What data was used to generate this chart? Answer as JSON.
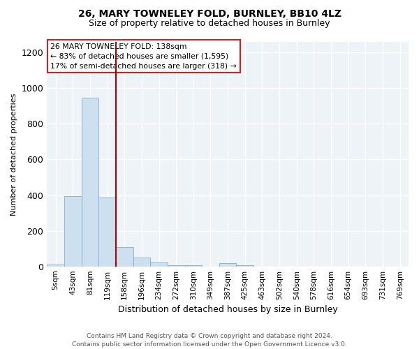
{
  "title": "26, MARY TOWNELEY FOLD, BURNLEY, BB10 4LZ",
  "subtitle": "Size of property relative to detached houses in Burnley",
  "xlabel": "Distribution of detached houses by size in Burnley",
  "ylabel": "Number of detached properties",
  "footnote1": "Contains HM Land Registry data © Crown copyright and database right 2024.",
  "footnote2": "Contains public sector information licensed under the Open Government Licence v3.0.",
  "annotation_line1": "26 MARY TOWNELEY FOLD: 138sqm",
  "annotation_line2": "← 83% of detached houses are smaller (1,595)",
  "annotation_line3": "17% of semi-detached houses are larger (318) →",
  "bar_labels": [
    "5sqm",
    "43sqm",
    "81sqm",
    "119sqm",
    "158sqm",
    "196sqm",
    "234sqm",
    "272sqm",
    "310sqm",
    "349sqm",
    "387sqm",
    "425sqm",
    "463sqm",
    "502sqm",
    "540sqm",
    "578sqm",
    "616sqm",
    "654sqm",
    "693sqm",
    "731sqm",
    "769sqm"
  ],
  "bar_values": [
    10,
    393,
    948,
    385,
    108,
    50,
    22,
    8,
    5,
    0,
    20,
    5,
    0,
    0,
    0,
    0,
    0,
    0,
    0,
    0,
    0
  ],
  "bar_color": "#cce0f0",
  "bar_edgecolor": "#88aacc",
  "marker_index": 4,
  "marker_color": "#aa0000",
  "ylim": [
    0,
    1260
  ],
  "yticks": [
    0,
    200,
    400,
    600,
    800,
    1000,
    1200
  ],
  "annotation_box_facecolor": "#ffffff",
  "annotation_box_edgecolor": "#cc2222",
  "grid_color": "#d8e4f0",
  "bg_color": "#eef3f8",
  "title_fontsize": 10,
  "subtitle_fontsize": 9,
  "ylabel_fontsize": 8,
  "xlabel_fontsize": 9,
  "tick_fontsize": 7.5,
  "footnote_fontsize": 6.5
}
